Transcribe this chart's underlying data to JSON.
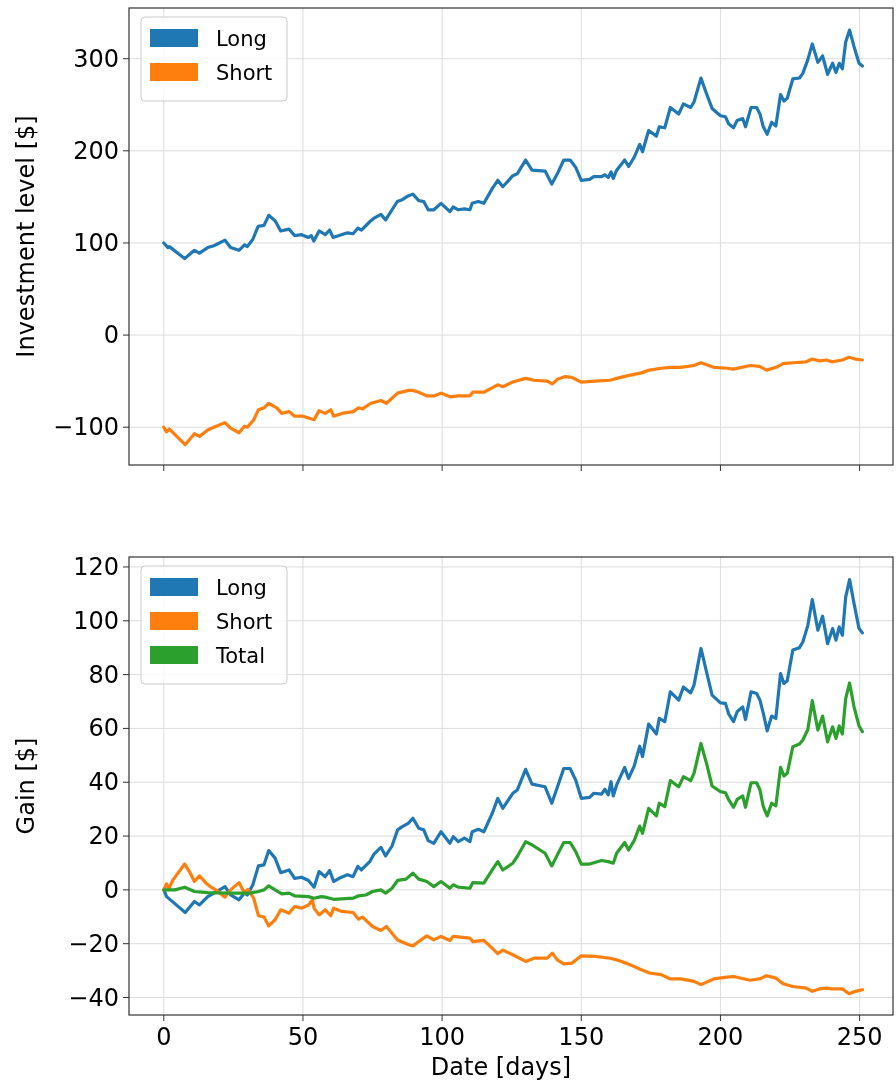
{
  "chart_data": [
    {
      "type": "line",
      "ylabel": "Investment level [$]",
      "xlim": [
        -12.5,
        262
      ],
      "ylim": [
        -141,
        355
      ],
      "xticks": [
        0,
        50,
        100,
        150,
        200,
        250
      ],
      "yticks": [
        -100,
        0,
        100,
        200,
        300
      ],
      "tick_labels": "y",
      "grid": true,
      "legend": "top left",
      "series": [
        {
          "name": "Long",
          "color": "#1f77b4",
          "x": [
            0,
            1.5,
            2,
            7.5,
            11,
            12.8,
            15.8,
            18,
            22,
            24,
            27,
            29,
            30,
            32,
            33.9,
            36,
            37.7,
            40,
            42,
            45,
            47,
            49.5,
            52,
            53,
            53.9,
            55.8,
            58,
            59.6,
            60.8,
            63,
            66,
            68,
            69.7,
            71,
            74,
            75.6,
            78,
            79.7,
            83.9,
            85.7,
            87.8,
            89.5,
            91.6,
            93.4,
            95,
            97,
            99.6,
            102.8,
            104,
            105.8,
            108,
            110,
            110.8,
            113,
            115,
            118,
            120,
            121.8,
            125.4,
            127,
            130,
            132.3,
            137,
            139.4,
            141.4,
            143.7,
            146,
            148,
            150,
            153,
            154.5,
            157.3,
            158.5,
            159.7,
            160.7,
            161.5,
            162.7,
            165.6,
            167,
            169,
            171,
            172,
            174.2,
            177,
            178,
            180,
            182,
            185,
            186.7,
            189.3,
            190.5,
            193,
            195,
            197,
            200,
            201.8,
            203,
            204.7,
            206,
            208,
            209,
            211,
            213,
            214.2,
            215.4,
            216.8,
            218.4,
            219.9,
            221.6,
            222.8,
            224,
            226,
            228.4,
            229.6,
            231.4,
            233,
            235,
            236.7,
            238.5,
            240.3,
            241.5,
            242.7,
            243.8,
            245,
            246.4,
            248,
            249.8,
            251
          ],
          "values": [
            100,
            95,
            96,
            83,
            92,
            89,
            95,
            97,
            103,
            95,
            92,
            98,
            96,
            104,
            118,
            119,
            130,
            124,
            113,
            115,
            108,
            109,
            106,
            108,
            102,
            113,
            109,
            114,
            106,
            108,
            111,
            110,
            116,
            114,
            123,
            127,
            131,
            125,
            145,
            147,
            151,
            153,
            146,
            145,
            136,
            136,
            143,
            134,
            139,
            136,
            137,
            136,
            143,
            145,
            143,
            159,
            168,
            161,
            173,
            175,
            190,
            179,
            178,
            164,
            175,
            190,
            190,
            182,
            168,
            169,
            172,
            172,
            174,
            171,
            177,
            170,
            179,
            190,
            183,
            193,
            207,
            199,
            222,
            216,
            226,
            225,
            247,
            240,
            251,
            247,
            253,
            279,
            262,
            246,
            238,
            237,
            229,
            225,
            233,
            235,
            226,
            247,
            247,
            240,
            226,
            218,
            231,
            227,
            261,
            254,
            257,
            278,
            279,
            284,
            299,
            316,
            296,
            303,
            283,
            295,
            285,
            295,
            289,
            318,
            331,
            313,
            295,
            292
          ]
        },
        {
          "name": "Short",
          "color": "#ff7f0e",
          "x": [
            0,
            1,
            2,
            7.7,
            11,
            12.8,
            15.8,
            18,
            22,
            24,
            27,
            29,
            30,
            32.3,
            34,
            36,
            37.7,
            40.6,
            42.4,
            45,
            47,
            50,
            52,
            54,
            55.8,
            58,
            60,
            61,
            64,
            68,
            70,
            71.4,
            74.4,
            78,
            80,
            84,
            88,
            89.5,
            91.6,
            94.5,
            97,
            99.6,
            102.8,
            105.8,
            110,
            111,
            115,
            120,
            121.8,
            125.4,
            130,
            133,
            137.8,
            139.6,
            141.4,
            144.3,
            146.7,
            150,
            155,
            160.3,
            162.7,
            166.8,
            171.6,
            174.5,
            178.7,
            182,
            185.8,
            190.5,
            193,
            197.6,
            202.4,
            204.7,
            210.7,
            214,
            216.6,
            220,
            222.5,
            226,
            230.8,
            233,
            235.5,
            238,
            240,
            243.8,
            246.2,
            248.5,
            251
          ],
          "values": [
            -100,
            -105,
            -102,
            -119,
            -107,
            -110,
            -103,
            -100,
            -95,
            -101,
            -106,
            -99,
            -100,
            -92,
            -81,
            -79,
            -74,
            -79,
            -85,
            -83,
            -88,
            -88,
            -90,
            -92,
            -82,
            -85,
            -81,
            -88,
            -85,
            -83,
            -79,
            -80,
            -74,
            -71,
            -74,
            -63,
            -60,
            -60,
            -62,
            -66,
            -66,
            -63,
            -67,
            -66,
            -66,
            -62,
            -62,
            -54,
            -56,
            -51,
            -47,
            -49,
            -50,
            -53,
            -48,
            -45,
            -46,
            -51,
            -50,
            -49,
            -47,
            -44,
            -41,
            -38,
            -36,
            -35,
            -35,
            -33,
            -30,
            -35,
            -36,
            -37,
            -33,
            -34,
            -38,
            -35,
            -31,
            -30,
            -29,
            -26,
            -28,
            -27,
            -29,
            -27,
            -24,
            -26,
            -27
          ]
        }
      ]
    },
    {
      "type": "line",
      "xlabel": "Date [days]",
      "ylabel": "Gain [$]",
      "xlim": [
        -12.5,
        262
      ],
      "ylim": [
        -46.5,
        123.7
      ],
      "xticks": [
        0,
        50,
        100,
        150,
        200,
        250
      ],
      "yticks": [
        -40,
        -20,
        0,
        20,
        40,
        60,
        80,
        100,
        120
      ],
      "grid": true,
      "legend": "top left",
      "series": [
        {
          "name": "Long",
          "color": "#1f77b4",
          "x": [
            0,
            1,
            2.7,
            7.7,
            11,
            12.8,
            15.8,
            18,
            22,
            24,
            27,
            29,
            30,
            32,
            34,
            36,
            37.7,
            40,
            42,
            45,
            47,
            49.5,
            52,
            54,
            55.8,
            58,
            59.6,
            61,
            63,
            66,
            68,
            69.7,
            71,
            74,
            75.6,
            78,
            79.7,
            82,
            84,
            85.7,
            87.8,
            89.5,
            91.6,
            93.4,
            95,
            97,
            99.6,
            102.8,
            104,
            105.8,
            108,
            110,
            110.8,
            113,
            115,
            118,
            120,
            121.8,
            125.4,
            127,
            130,
            132.3,
            137,
            139.4,
            141.4,
            143.7,
            146,
            148,
            150,
            153,
            154.5,
            157.3,
            158.5,
            159.7,
            160.7,
            161.5,
            162.7,
            165.6,
            167,
            169,
            171,
            172,
            174.2,
            177,
            178,
            180,
            182,
            185,
            186.7,
            189.3,
            190.5,
            193,
            195,
            197,
            200,
            201.8,
            203,
            204.7,
            206,
            208,
            209,
            211,
            213,
            214.2,
            215.4,
            216.8,
            218.4,
            219.9,
            221.6,
            222.8,
            224,
            226,
            228.4,
            229.6,
            231.4,
            233,
            235,
            236.7,
            238.5,
            240.3,
            241.5,
            242.7,
            243.8,
            245,
            246.4,
            248,
            249.8,
            251
          ],
          "values": [
            0,
            -2.5,
            -4,
            -8.4,
            -4.3,
            -5.6,
            -2.5,
            -1.2,
            1.2,
            -1.9,
            -3.7,
            -1.2,
            -1.9,
            1.9,
            8.9,
            9.3,
            14.6,
            11.8,
            6.4,
            7.4,
            4.3,
            4.7,
            3.5,
            1,
            6.8,
            4.9,
            7.2,
            3.1,
            4.3,
            5.6,
            4.9,
            8.7,
            7.4,
            10.5,
            13.4,
            15.8,
            12.6,
            16.3,
            22.3,
            23.5,
            24.7,
            26.6,
            22.9,
            22.3,
            18.3,
            17.3,
            21.6,
            17.3,
            19.8,
            17.9,
            19.2,
            17.9,
            21.6,
            22.5,
            21.6,
            28.4,
            34,
            30.3,
            35.9,
            37.1,
            44.8,
            39.3,
            38.3,
            32.2,
            38.1,
            45.1,
            45.1,
            40.8,
            34,
            34.4,
            35.9,
            35.6,
            37.4,
            35.3,
            40.2,
            34.9,
            39,
            45.5,
            41.4,
            46,
            53.4,
            49.5,
            61.6,
            57.9,
            63.7,
            62.5,
            73.6,
            70.5,
            75.4,
            73.2,
            76.1,
            89.7,
            81,
            72.4,
            69.5,
            69.3,
            65.3,
            62.5,
            66.2,
            68,
            63.3,
            73.6,
            73,
            70.5,
            65.6,
            59.1,
            64.6,
            63.7,
            80.4,
            76.7,
            77.7,
            89.1,
            90,
            92.1,
            98.3,
            107.9,
            96.5,
            101.7,
            91.5,
            97.1,
            92.8,
            97.7,
            94.6,
            108.8,
            115.3,
            106.4,
            97.1,
            95.5
          ]
        },
        {
          "name": "Short",
          "color": "#ff7f0e",
          "x": [
            0,
            1,
            1.8,
            3.3,
            7.5,
            9.2,
            11,
            12.8,
            15.2,
            17,
            18.7,
            22,
            24,
            27,
            29,
            30.2,
            32.3,
            34,
            36,
            37.7,
            40,
            42,
            45,
            47,
            49.5,
            52,
            53.4,
            54,
            55.8,
            58,
            60,
            61,
            64,
            68,
            70,
            71.4,
            75,
            78,
            80,
            84,
            88,
            89.5,
            91.6,
            94.5,
            97,
            99.6,
            102.8,
            104,
            110,
            111,
            115,
            117.6,
            120,
            121.8,
            125.4,
            130,
            133,
            137.8,
            139.6,
            141.4,
            143.7,
            146.7,
            150,
            155,
            160.3,
            162.7,
            166.8,
            171.6,
            174.5,
            178.7,
            182,
            185.8,
            190.5,
            193,
            197.6,
            202.4,
            204.7,
            210.7,
            214,
            216.6,
            220,
            222.5,
            226,
            230.8,
            233,
            235.5,
            238,
            240,
            243.8,
            246.2,
            248.5,
            251
          ],
          "values": [
            0,
            2.2,
            0.6,
            3.7,
            9.6,
            6.8,
            3.1,
            5.2,
            2.5,
            1,
            0,
            -2.7,
            0,
            2.7,
            -1.2,
            0.2,
            -3.1,
            -9.6,
            -10.1,
            -13.4,
            -11.1,
            -7.4,
            -8.7,
            -6.2,
            -6.8,
            -5.6,
            -3.7,
            -6.8,
            -9.3,
            -7.4,
            -9.6,
            -6.8,
            -8,
            -8.4,
            -10.9,
            -10.1,
            -13.6,
            -15.1,
            -13.6,
            -18.6,
            -20.4,
            -20.8,
            -19.2,
            -17.1,
            -18.6,
            -17.3,
            -18.8,
            -17.3,
            -17.9,
            -19.2,
            -18.8,
            -21.3,
            -23.7,
            -22.4,
            -24.1,
            -26.6,
            -25.4,
            -25.4,
            -23.5,
            -26,
            -27.5,
            -27.2,
            -24.5,
            -24.7,
            -25.4,
            -26,
            -27.5,
            -29.7,
            -30.9,
            -31.5,
            -33.1,
            -33.1,
            -34,
            -35.2,
            -33.1,
            -32.4,
            -32.2,
            -33.6,
            -33.1,
            -31.9,
            -32.8,
            -34.9,
            -35.9,
            -36.5,
            -37.7,
            -36.8,
            -36.5,
            -36.8,
            -36.8,
            -38.6,
            -37.7,
            -37.1
          ]
        },
        {
          "name": "Total",
          "color": "#2ca02c",
          "x": [
            0,
            4,
            7.5,
            11,
            15.8,
            22.9,
            31,
            34,
            36,
            37.7,
            40,
            42.4,
            45,
            47,
            52,
            54,
            56.6,
            58,
            61,
            68,
            70,
            72.6,
            75,
            78,
            79.7,
            82,
            84,
            87,
            89.5,
            91.6,
            94.5,
            97,
            99.6,
            102.8,
            104,
            105.8,
            110,
            111,
            115,
            118,
            120,
            121.8,
            125.4,
            127,
            130,
            132.3,
            137,
            139.4,
            141.4,
            143.7,
            146,
            148,
            150,
            153,
            157.3,
            159.7,
            161.5,
            162.7,
            165.6,
            167,
            169,
            171,
            172,
            174.2,
            177,
            178,
            180,
            182,
            185,
            186.7,
            189.3,
            190.5,
            193,
            195,
            197,
            200,
            201.8,
            203,
            204.7,
            206,
            208,
            209,
            211,
            213,
            214.2,
            215.4,
            216.8,
            218.4,
            219.9,
            221.6,
            222.8,
            224,
            226,
            228.4,
            229.6,
            231.4,
            233,
            235,
            236.7,
            238.5,
            240.3,
            241.5,
            242.7,
            243.8,
            245,
            246.4,
            248,
            249.8,
            251
          ],
          "values": [
            0,
            0,
            1,
            -0.6,
            -1,
            -1.2,
            -1.2,
            -0.6,
            0,
            1.5,
            0,
            -1.5,
            -1.2,
            -2.2,
            -2.5,
            -3.1,
            -2.5,
            -2.7,
            -3.5,
            -3.1,
            -2.2,
            -1.9,
            -0.6,
            0,
            -1.2,
            0.6,
            3.5,
            4,
            6.2,
            4,
            3.1,
            1.2,
            3.1,
            0.6,
            1.9,
            1,
            0.6,
            2.7,
            2.5,
            7.4,
            10.5,
            7.4,
            9.9,
            12.4,
            17.9,
            16.7,
            13.6,
            8.9,
            13,
            17.6,
            17.6,
            14.2,
            9.6,
            9.6,
            10.9,
            10.5,
            9.9,
            13.6,
            17.6,
            14.8,
            18.3,
            23.7,
            21,
            30.3,
            27.5,
            32.2,
            30.9,
            40.6,
            38.3,
            42.1,
            40.6,
            43.3,
            54.4,
            47,
            38.6,
            36.5,
            36.1,
            33.4,
            30.7,
            33.6,
            34.9,
            30.7,
            39.8,
            39.8,
            37.1,
            30.9,
            27.5,
            32.2,
            31.2,
            45.5,
            42.3,
            43.3,
            53.2,
            54.2,
            55.7,
            59.6,
            70.3,
            59.4,
            64.6,
            55,
            60.6,
            56.3,
            60.9,
            57.9,
            71.1,
            76.9,
            68,
            60.9,
            58.8
          ]
        }
      ]
    }
  ]
}
